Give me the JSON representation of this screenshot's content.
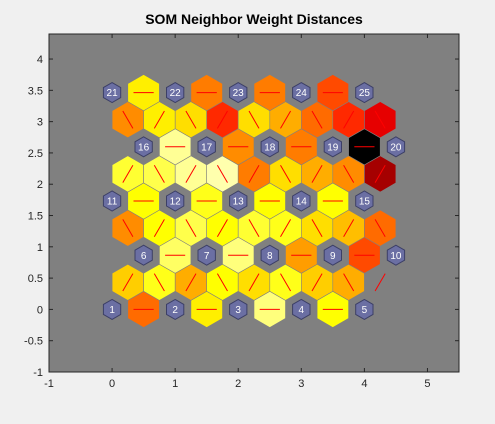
{
  "window": {
    "background": "#f0f0f0"
  },
  "colors": {
    "axes_background": "#808080",
    "axis_line": "#262626",
    "neuron_fill": "#6b6fa3",
    "neuron_stroke": "#3c3f66",
    "neuron_text": "#ffffff",
    "connection_line": "#ff0000",
    "hex_stroke": "#808080"
  },
  "chart_data": {
    "type": "heatmap",
    "title": "SOM Neighbor Weight Distances",
    "xlabel": "",
    "ylabel": "",
    "xlim": [
      -1,
      5.5
    ],
    "ylim": [
      -1,
      4.4
    ],
    "xticks": [
      -1,
      0,
      1,
      2,
      3,
      4,
      5
    ],
    "yticks": [
      -1,
      -0.5,
      0,
      0.5,
      1,
      1.5,
      2,
      2.5,
      3,
      3.5,
      4
    ],
    "xtick_labels": [
      "-1",
      "0",
      "1",
      "2",
      "3",
      "4",
      "5"
    ],
    "ytick_labels": [
      "-1",
      "-0.5",
      "0",
      "0.5",
      "1",
      "1.5",
      "2",
      "2.5",
      "3",
      "3.5",
      "4"
    ],
    "grid": false,
    "colormap": "hot",
    "value_range": [
      0,
      1
    ],
    "neurons": [
      {
        "label": "1",
        "x": 0,
        "y": 0
      },
      {
        "label": "2",
        "x": 1,
        "y": 0
      },
      {
        "label": "3",
        "x": 2,
        "y": 0
      },
      {
        "label": "4",
        "x": 3,
        "y": 0
      },
      {
        "label": "5",
        "x": 4,
        "y": 0
      },
      {
        "label": "6",
        "x": 0.5,
        "y": 0.866
      },
      {
        "label": "7",
        "x": 1.5,
        "y": 0.866
      },
      {
        "label": "8",
        "x": 2.5,
        "y": 0.866
      },
      {
        "label": "9",
        "x": 3.5,
        "y": 0.866
      },
      {
        "label": "10",
        "x": 4.5,
        "y": 0.866
      },
      {
        "label": "11",
        "x": 0,
        "y": 1.732
      },
      {
        "label": "12",
        "x": 1,
        "y": 1.732
      },
      {
        "label": "13",
        "x": 2,
        "y": 1.732
      },
      {
        "label": "14",
        "x": 3,
        "y": 1.732
      },
      {
        "label": "15",
        "x": 4,
        "y": 1.732
      },
      {
        "label": "16",
        "x": 0.5,
        "y": 2.598
      },
      {
        "label": "17",
        "x": 1.5,
        "y": 2.598
      },
      {
        "label": "18",
        "x": 2.5,
        "y": 2.598
      },
      {
        "label": "19",
        "x": 3.5,
        "y": 2.598
      },
      {
        "label": "20",
        "x": 4.5,
        "y": 2.598
      },
      {
        "label": "21",
        "x": 0,
        "y": 3.464
      },
      {
        "label": "22",
        "x": 1,
        "y": 3.464
      },
      {
        "label": "23",
        "x": 2,
        "y": 3.464
      },
      {
        "label": "24",
        "x": 3,
        "y": 3.464
      },
      {
        "label": "25",
        "x": 4,
        "y": 3.464
      }
    ],
    "edge_cells": [
      {
        "x": 0.5,
        "y": 0,
        "value": 0.9
      },
      {
        "x": 1.5,
        "y": 0,
        "value": 0.5
      },
      {
        "x": 2.5,
        "y": 0,
        "value": 0.2
      },
      {
        "x": 3.5,
        "y": 0,
        "value": 0.45
      },
      {
        "x": 0.25,
        "y": 0.433,
        "value": 0.6
      },
      {
        "x": 0.75,
        "y": 0.433,
        "value": 0.4
      },
      {
        "x": 1.25,
        "y": 0.433,
        "value": 0.7
      },
      {
        "x": 1.75,
        "y": 0.433,
        "value": 0.45
      },
      {
        "x": 2.25,
        "y": 0.433,
        "value": 0.55
      },
      {
        "x": 2.75,
        "y": 0.433,
        "value": 0.4
      },
      {
        "x": 3.25,
        "y": 0.433,
        "value": 0.6
      },
      {
        "x": 3.75,
        "y": 0.433,
        "value": 0.7
      },
      {
        "x": 1,
        "y": 0.866,
        "value": 0.25
      },
      {
        "x": 2,
        "y": 0.866,
        "value": 0.2
      },
      {
        "x": 3,
        "y": 0.866,
        "value": 0.75
      },
      {
        "x": 4,
        "y": 0.866,
        "value": 1.0
      },
      {
        "x": 0.25,
        "y": 1.299,
        "value": 0.8
      },
      {
        "x": 0.75,
        "y": 1.299,
        "value": 0.45
      },
      {
        "x": 1.25,
        "y": 1.299,
        "value": 0.3
      },
      {
        "x": 1.75,
        "y": 1.299,
        "value": 0.45
      },
      {
        "x": 2.25,
        "y": 1.299,
        "value": 0.35
      },
      {
        "x": 2.75,
        "y": 1.299,
        "value": 0.4
      },
      {
        "x": 3.25,
        "y": 1.299,
        "value": 0.55
      },
      {
        "x": 3.75,
        "y": 1.299,
        "value": 0.65
      },
      {
        "x": 4.25,
        "y": 1.299,
        "value": 0.9
      },
      {
        "x": 0.5,
        "y": 1.732,
        "value": 0.45
      },
      {
        "x": 1.5,
        "y": 1.732,
        "value": 0.4
      },
      {
        "x": 2.5,
        "y": 1.732,
        "value": 0.45
      },
      {
        "x": 3.5,
        "y": 1.732,
        "value": 0.45
      },
      {
        "x": 0.25,
        "y": 2.165,
        "value": 0.35
      },
      {
        "x": 0.75,
        "y": 2.165,
        "value": 0.3
      },
      {
        "x": 1.25,
        "y": 2.165,
        "value": 0.15
      },
      {
        "x": 1.75,
        "y": 2.165,
        "value": 0.1
      },
      {
        "x": 2.25,
        "y": 2.165,
        "value": 0.85
      },
      {
        "x": 2.75,
        "y": 2.165,
        "value": 0.55
      },
      {
        "x": 3.25,
        "y": 2.165,
        "value": 0.7
      },
      {
        "x": 3.75,
        "y": 2.165,
        "value": 0.8
      },
      {
        "x": 4.25,
        "y": 2.165,
        "value": 1.5
      },
      {
        "x": 1,
        "y": 2.598,
        "value": 0.15
      },
      {
        "x": 2,
        "y": 2.598,
        "value": 0.8
      },
      {
        "x": 3,
        "y": 2.598,
        "value": 0.85
      },
      {
        "x": 4,
        "y": 2.598,
        "value": 2.0
      },
      {
        "x": 0.25,
        "y": 3.031,
        "value": 0.8
      },
      {
        "x": 0.75,
        "y": 3.031,
        "value": 0.5
      },
      {
        "x": 1.25,
        "y": 3.031,
        "value": 0.55
      },
      {
        "x": 1.75,
        "y": 3.031,
        "value": 1.1
      },
      {
        "x": 2.25,
        "y": 3.031,
        "value": 0.55
      },
      {
        "x": 2.75,
        "y": 3.031,
        "value": 0.7
      },
      {
        "x": 3.25,
        "y": 3.031,
        "value": 0.9
      },
      {
        "x": 3.75,
        "y": 3.031,
        "value": 1.1
      },
      {
        "x": 4.25,
        "y": 3.031,
        "value": 1.3
      },
      {
        "x": 0.5,
        "y": 3.464,
        "value": 0.5
      },
      {
        "x": 1.5,
        "y": 3.464,
        "value": 0.85
      },
      {
        "x": 2.5,
        "y": 3.464,
        "value": 0.85
      },
      {
        "x": 3.5,
        "y": 3.464,
        "value": 1.0
      }
    ]
  }
}
